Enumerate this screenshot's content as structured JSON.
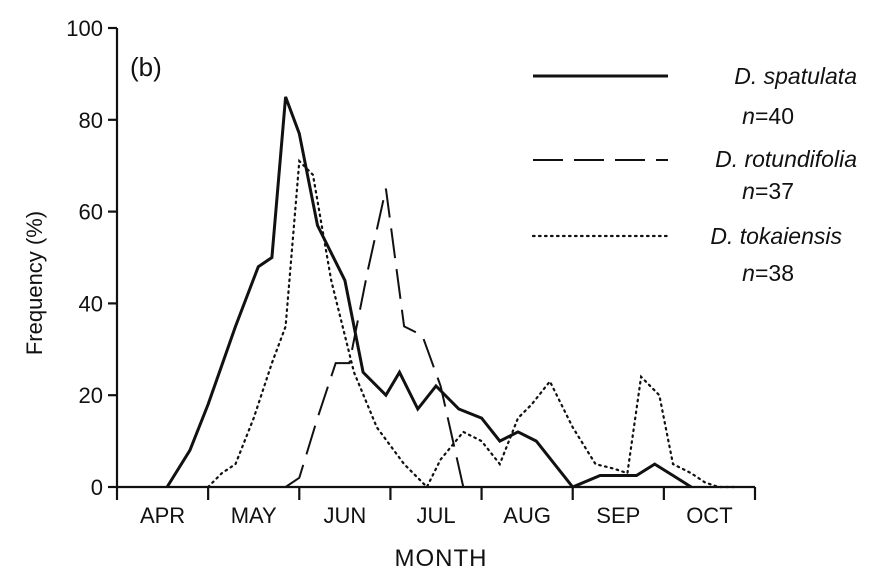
{
  "chart_data": {
    "type": "line",
    "panel_label": "(b)",
    "title": "",
    "xlabel": "MONTH",
    "ylabel": "Frequency (%)",
    "ylim": [
      0,
      100
    ],
    "yticks": [
      0,
      20,
      40,
      60,
      80,
      100
    ],
    "x_unit": "month index (0 = start of APR, 7 = end of OCT)",
    "xlim": [
      0,
      7
    ],
    "month_labels": [
      "APR",
      "MAY",
      "JUN",
      "JUL",
      "AUG",
      "SEP",
      "OCT"
    ],
    "legend_position": "top-right",
    "series": [
      {
        "name": "D. spatulata",
        "n_label": "40",
        "style": "solid",
        "x": [
          0.55,
          0.8,
          1.0,
          1.3,
          1.55,
          1.7,
          1.85,
          2.0,
          2.2,
          2.5,
          2.7,
          2.95,
          3.1,
          3.3,
          3.5,
          3.75,
          4.0,
          4.2,
          4.4,
          4.6,
          4.8,
          5.0,
          5.3,
          5.5,
          5.7,
          5.9,
          6.1,
          6.3
        ],
        "y": [
          0,
          8,
          18,
          35,
          48,
          50,
          85,
          77,
          57,
          45,
          25,
          20,
          25,
          17,
          22,
          17,
          15,
          10,
          12,
          10,
          5,
          0,
          2.5,
          2.5,
          2.5,
          5,
          2.5,
          0
        ]
      },
      {
        "name": "D. rotundifolia",
        "n_label": "37",
        "style": "dashed",
        "x": [
          1.85,
          2.0,
          2.2,
          2.4,
          2.55,
          2.75,
          2.95,
          3.15,
          3.35,
          3.55,
          3.8
        ],
        "y": [
          0,
          2,
          15,
          27,
          27,
          47,
          65,
          35,
          33,
          22,
          0
        ]
      },
      {
        "name": "D. tokaiensis",
        "n_label": "38",
        "style": "dotted",
        "x": [
          1.0,
          1.15,
          1.3,
          1.5,
          1.7,
          1.85,
          2.0,
          2.15,
          2.35,
          2.6,
          2.85,
          3.15,
          3.4,
          3.55,
          3.8,
          4.0,
          4.2,
          4.4,
          4.55,
          4.75,
          5.0,
          5.25,
          5.45,
          5.6,
          5.75,
          5.95,
          6.1,
          6.3,
          6.45,
          6.6,
          6.8
        ],
        "y": [
          0,
          3,
          5,
          15,
          27,
          35,
          71,
          68,
          45,
          25,
          13,
          5,
          0,
          6,
          12,
          10,
          5,
          15,
          18,
          23,
          13,
          5,
          4,
          3,
          24,
          20,
          5,
          3,
          1,
          0,
          0
        ]
      }
    ]
  }
}
